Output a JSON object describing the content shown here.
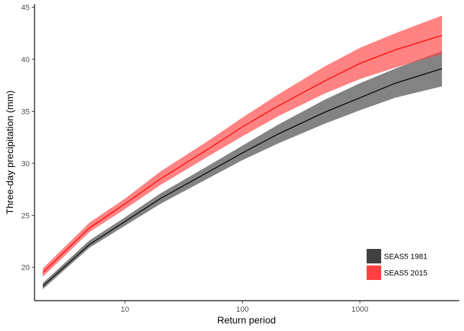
{
  "chart_data": {
    "type": "line",
    "title": "",
    "xlabel": "Return period",
    "ylabel": "Three-day precipitation (mm)",
    "x_scale": "log10",
    "xlim": [
      1.7,
      7000
    ],
    "ylim": [
      16.8,
      45.3
    ],
    "x_ticks": [
      10,
      100,
      1000
    ],
    "x_tick_labels": [
      "10",
      "100",
      "1000"
    ],
    "y_ticks": [
      20,
      25,
      30,
      35,
      40,
      45
    ],
    "y_tick_labels": [
      "20",
      "25",
      "30",
      "35",
      "40",
      "45"
    ],
    "grid": false,
    "legend_position": "bottom-right",
    "x": [
      2,
      5,
      10,
      20,
      50,
      100,
      200,
      500,
      1000,
      2000,
      5000
    ],
    "series": [
      {
        "name": "SEAS5 1981",
        "line_color": "#000000",
        "band_color": "#404040",
        "values": [
          18.2,
          22.2,
          24.4,
          26.6,
          29.1,
          31.0,
          32.8,
          34.9,
          36.3,
          37.7,
          39.1
        ],
        "lower": [
          17.9,
          21.9,
          24.0,
          26.1,
          28.5,
          30.3,
          31.9,
          33.8,
          35.1,
          36.3,
          37.4
        ],
        "upper": [
          18.5,
          22.6,
          24.8,
          27.1,
          29.7,
          31.7,
          33.7,
          36.1,
          37.7,
          39.1,
          40.8
        ]
      },
      {
        "name": "SEAS5 2015",
        "line_color": "#ff0000",
        "band_color": "#ff4040",
        "values": [
          19.5,
          23.8,
          26.1,
          28.5,
          31.3,
          33.5,
          35.5,
          37.9,
          39.6,
          40.9,
          42.3
        ],
        "lower": [
          19.1,
          23.4,
          25.6,
          27.9,
          30.6,
          32.6,
          34.5,
          36.7,
          38.1,
          39.2,
          40.5
        ],
        "upper": [
          19.9,
          24.3,
          26.6,
          29.2,
          32.1,
          34.4,
          36.6,
          39.3,
          41.1,
          42.5,
          44.2
        ]
      }
    ]
  }
}
